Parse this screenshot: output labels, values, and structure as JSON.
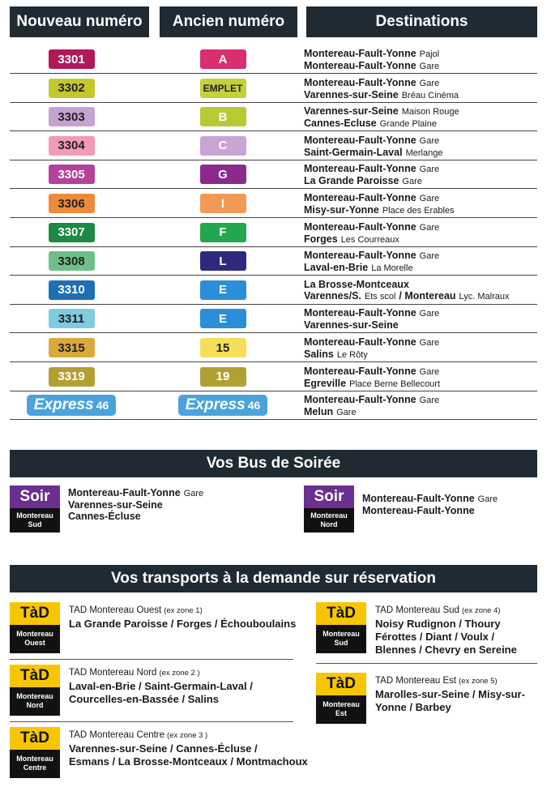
{
  "headers": [
    "Nouveau numéro",
    "Ancien numéro",
    "Destinations"
  ],
  "table": {
    "rows": [
      {
        "new": {
          "text": "3301",
          "color": "#b0185a",
          "text_color": "#ffffff"
        },
        "old": {
          "text": "A",
          "color": "#d92f6e",
          "text_color": "#ffffff"
        },
        "destinations": [
          [
            {
              "b": "Montereau-Fault-Yonne"
            },
            {
              "r": "Pajol"
            }
          ],
          [
            {
              "b": "Montereau-Fault-Yonne"
            },
            {
              "r": "Gare"
            }
          ]
        ]
      },
      {
        "new": {
          "text": "3302",
          "color": "#c5c72e",
          "text_color": "#222222"
        },
        "old": {
          "text": "EMPLET",
          "color": "#c3d13a",
          "text_color": "#222222"
        },
        "destinations": [
          [
            {
              "b": "Montereau-Fault-Yonne"
            },
            {
              "r": "Gare"
            }
          ],
          [
            {
              "b": "Varennes-sur-Seine"
            },
            {
              "r": "Bréau Cinéma"
            }
          ]
        ]
      },
      {
        "new": {
          "text": "3303",
          "color": "#c4a2d2",
          "text_color": "#222222"
        },
        "old": {
          "text": "B",
          "color": "#b5ca34",
          "text_color": "#ffffff"
        },
        "destinations": [
          [
            {
              "b": "Varennes-sur-Seine"
            },
            {
              "r": "Maison Rouge"
            }
          ],
          [
            {
              "b": "Cannes-Ecluse"
            },
            {
              "r": "Grande Plaine"
            }
          ]
        ]
      },
      {
        "new": {
          "text": "3304",
          "color": "#f39ab6",
          "text_color": "#222222"
        },
        "old": {
          "text": "C",
          "color": "#c9a3d3",
          "text_color": "#ffffff"
        },
        "destinations": [
          [
            {
              "b": "Montereau-Fault-Yonne"
            },
            {
              "r": "Gare"
            }
          ],
          [
            {
              "b": "Saint-Germain-Laval"
            },
            {
              "r": "Merlange"
            }
          ]
        ]
      },
      {
        "new": {
          "text": "3305",
          "color": "#b5419a",
          "text_color": "#ffffff"
        },
        "old": {
          "text": "G",
          "color": "#8b2a8b",
          "text_color": "#ffffff"
        },
        "destinations": [
          [
            {
              "b": "Montereau-Fault-Yonne"
            },
            {
              "r": "Gare"
            }
          ],
          [
            {
              "b": "La Grande Paroisse"
            },
            {
              "r": "Gare"
            }
          ]
        ]
      },
      {
        "new": {
          "text": "3306",
          "color": "#ee8a3a",
          "text_color": "#222222"
        },
        "old": {
          "text": "I",
          "color": "#f19a55",
          "text_color": "#ffffff"
        },
        "destinations": [
          [
            {
              "b": "Montereau-Fault-Yonne"
            },
            {
              "r": "Gare"
            }
          ],
          [
            {
              "b": "Misy-sur-Yonne"
            },
            {
              "r": "Place des Erables"
            }
          ]
        ]
      },
      {
        "new": {
          "text": "3307",
          "color": "#1a8a44",
          "text_color": "#ffffff"
        },
        "old": {
          "text": "F",
          "color": "#23a650",
          "text_color": "#ffffff"
        },
        "destinations": [
          [
            {
              "b": "Montereau-Fault-Yonne"
            },
            {
              "r": "Gare"
            }
          ],
          [
            {
              "b": "Forges"
            },
            {
              "r": "Les Courreaux"
            }
          ]
        ]
      },
      {
        "new": {
          "text": "3308",
          "color": "#6fbf8a",
          "text_color": "#222222"
        },
        "old": {
          "text": "L",
          "color": "#2d2a7e",
          "text_color": "#ffffff"
        },
        "destinations": [
          [
            {
              "b": "Montereau-Fault-Yonne"
            },
            {
              "r": "Gare"
            }
          ],
          [
            {
              "b": "Laval-en-Brie"
            },
            {
              "r": "La Morelle"
            }
          ]
        ]
      },
      {
        "new": {
          "text": "3310",
          "color": "#1e6fb5",
          "text_color": "#ffffff"
        },
        "old": {
          "text": "E",
          "color": "#2a8fd6",
          "text_color": "#ffffff"
        },
        "destinations": [
          [
            {
              "b": "La Brosse-Montceaux"
            }
          ],
          [
            {
              "b": "Varennes/S."
            },
            {
              "r": "Ets scol"
            },
            {
              "b": "/ Montereau"
            },
            {
              "r": "Lyc. Malraux"
            }
          ]
        ]
      },
      {
        "new": {
          "text": "3311",
          "color": "#7fcbe0",
          "text_color": "#222222"
        },
        "old": {
          "text": "E",
          "color": "#2a8fd6",
          "text_color": "#ffffff"
        },
        "destinations": [
          [
            {
              "b": "Montereau-Fault-Yonne"
            },
            {
              "r": "Gare"
            }
          ],
          [
            {
              "b": "Varennes-sur-Seine"
            }
          ]
        ]
      },
      {
        "new": {
          "text": "3315",
          "color": "#d9a93a",
          "text_color": "#222222"
        },
        "old": {
          "text": "15",
          "color": "#f5df5a",
          "text_color": "#222222"
        },
        "destinations": [
          [
            {
              "b": "Montereau-Fault-Yonne"
            },
            {
              "r": "Gare"
            }
          ],
          [
            {
              "b": "Salins"
            },
            {
              "r": "Le Rôty"
            }
          ]
        ]
      },
      {
        "new": {
          "text": "3319",
          "color": "#b1a134",
          "text_color": "#ffffff"
        },
        "old": {
          "text": "19",
          "color": "#b1a134",
          "text_color": "#ffffff"
        },
        "destinations": [
          [
            {
              "b": "Montereau-Fault-Yonne"
            },
            {
              "r": "Gare"
            }
          ],
          [
            {
              "b": "Egreville"
            },
            {
              "r": "Place Berne Bellecourt"
            }
          ]
        ]
      },
      {
        "new": {
          "express": "Express",
          "num": "46",
          "color": "#4aa3dc",
          "text_color": "#ffffff"
        },
        "old": {
          "express": "Express",
          "num": "46",
          "color": "#4aa3dc",
          "text_color": "#ffffff"
        },
        "destinations": [
          [
            {
              "b": "Montereau-Fault-Yonne"
            },
            {
              "r": "Gare"
            }
          ],
          [
            {
              "b": "Melun"
            },
            {
              "r": "Gare"
            }
          ]
        ]
      }
    ]
  },
  "soiree": {
    "title": "Vos Bus de Soirée",
    "items": [
      {
        "badge": "Soir",
        "sub": [
          "Montereau",
          "Sud"
        ],
        "destinations": [
          [
            {
              "b": "Montereau-Fault-Yonne"
            },
            {
              "r": "Gare"
            }
          ],
          [
            {
              "b": "Varennes-sur-Seine"
            }
          ],
          [
            {
              "b": "Cannes-Écluse"
            }
          ]
        ]
      },
      {
        "badge": "Soir",
        "sub": [
          "Montereau",
          "Nord"
        ],
        "destinations": [
          [
            {
              "b": "Montereau-Fault-Yonne"
            },
            {
              "r": "Gare"
            }
          ],
          [
            {
              "b": "Montereau-Fault-Yonne"
            }
          ]
        ]
      }
    ]
  },
  "tad": {
    "title": "Vos transports à  la demande sur réservation",
    "items": [
      {
        "badge": "TàD",
        "sub": [
          "Montereau",
          "Ouest"
        ],
        "name": "TAD Montereau Ouest",
        "note": "(ex zone 1)",
        "lines": [
          "La Grande Paroisse / Forges / Échouboulains"
        ]
      },
      {
        "badge": "TàD",
        "sub": [
          "Montereau",
          "Nord"
        ],
        "name": "TAD Montereau Nord",
        "note": "(ex zone 2 )",
        "lines": [
          "Laval-en-Brie / Saint-Germain-Laval /",
          "Courcelles-en-Bassée / Salins"
        ]
      },
      {
        "badge": "TàD",
        "sub": [
          "Montereau",
          "Centre"
        ],
        "name": "TAD Montereau Centre",
        "note": "(ex zone 3 )",
        "lines": [
          "Varennes-sur-Seine / Cannes-Écluse /",
          "Esmans / La Brosse-Montceaux / Montmachoux"
        ]
      },
      {
        "badge": "TàD",
        "sub": [
          "Montereau",
          "Sud"
        ],
        "name": "TAD Montereau Sud",
        "note": "(ex zone 4)",
        "lines": [
          "Noisy Rudignon / Thoury",
          "Férottes / Diant / Voulx /",
          "Blennes / Chevry en Sereine"
        ]
      },
      {
        "badge": "TàD",
        "sub": [
          "Montereau",
          "Est"
        ],
        "name": "TAD Montereau Est",
        "note": "(ex zone 5)",
        "lines": [
          "Marolles-sur-Seine / Misy-sur-",
          "Yonne / Barbey"
        ]
      }
    ]
  }
}
